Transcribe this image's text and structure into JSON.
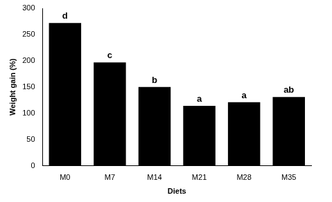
{
  "chart_data": {
    "type": "bar",
    "x_label": "Diets",
    "y_label": "Weight gain (%)",
    "categories": [
      "M0",
      "M7",
      "M14",
      "M21",
      "M28",
      "M35"
    ],
    "values": [
      272,
      197,
      150,
      114,
      121,
      131
    ],
    "annotations": [
      "d",
      "c",
      "b",
      "a",
      "a",
      "ab"
    ],
    "color": "#000000",
    "ylim": [
      0,
      300
    ],
    "yticks": [
      0,
      50,
      100,
      150,
      200,
      250,
      300
    ],
    "grid": false
  }
}
